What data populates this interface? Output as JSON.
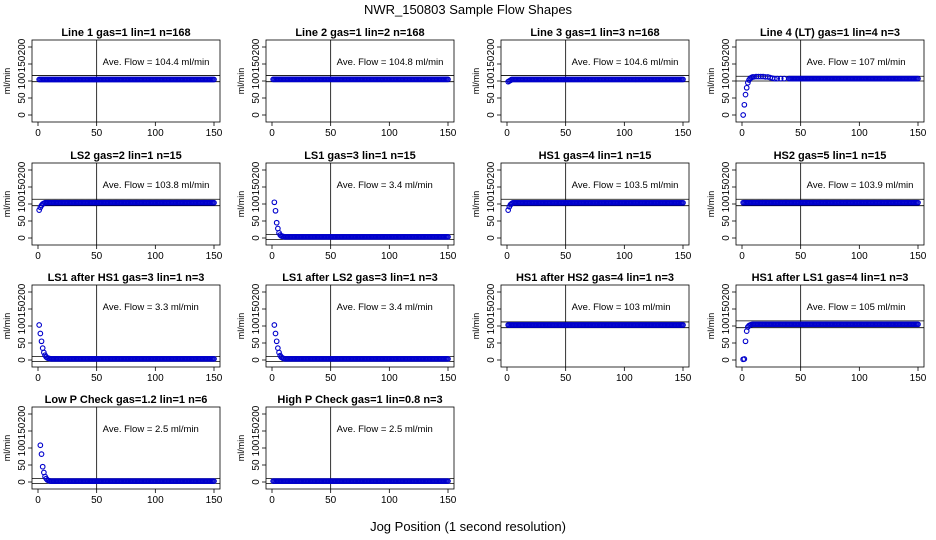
{
  "title": "NWR_150803  Sample Flow Shapes",
  "xlabel": "Jog Position (1 second resolution)",
  "colors": {
    "points": "#0000cc",
    "lines": "#000000",
    "background": "#ffffff"
  },
  "chart_data": [
    {
      "type": "scatter",
      "title": "Line 1 gas=1 lin=1 n=168",
      "annotation": "Ave. Flow = 104.4  ml/min",
      "ylabel": "ml/min",
      "xlim": [
        0,
        150
      ],
      "ylim": [
        0,
        200
      ],
      "xticks": [
        "0",
        "50",
        "100",
        "150"
      ],
      "yticks": [
        "0",
        "50",
        "100",
        "150",
        "200"
      ],
      "reference_lines": {
        "vertical_x": 50,
        "horizontal_y": [
          98,
          116
        ]
      },
      "points": [],
      "steady": {
        "from_x": 1,
        "to_x": 150,
        "y": 104.4
      }
    },
    {
      "type": "scatter",
      "title": "Line 2 gas=1 lin=2 n=168",
      "annotation": "Ave. Flow = 104.8  ml/min",
      "ylabel": "ml/min",
      "xlim": [
        0,
        150
      ],
      "ylim": [
        0,
        200
      ],
      "xticks": [
        "0",
        "50",
        "100",
        "150"
      ],
      "yticks": [
        "0",
        "50",
        "100",
        "150",
        "200"
      ],
      "reference_lines": {
        "vertical_x": 50,
        "horizontal_y": [
          98,
          116
        ]
      },
      "points": [],
      "steady": {
        "from_x": 1,
        "to_x": 150,
        "y": 104.8
      }
    },
    {
      "type": "scatter",
      "title": "Line 3 gas=1 lin=3 n=168",
      "annotation": "Ave. Flow = 104.6  ml/min",
      "ylabel": "ml/min",
      "xlim": [
        0,
        150
      ],
      "ylim": [
        0,
        200
      ],
      "xticks": [
        "0",
        "50",
        "100",
        "150"
      ],
      "yticks": [
        "0",
        "50",
        "100",
        "150",
        "200"
      ],
      "reference_lines": {
        "vertical_x": 50,
        "horizontal_y": [
          98,
          116
        ]
      },
      "points": [
        [
          1,
          98
        ],
        [
          2,
          100
        ],
        [
          3,
          102
        ]
      ],
      "steady": {
        "from_x": 4,
        "to_x": 150,
        "y": 104.6
      }
    },
    {
      "type": "scatter",
      "title": "Line 4 (LT) gas=1 lin=4 n=3",
      "annotation": "Ave. Flow = 107  ml/min",
      "ylabel": "ml/min",
      "xlim": [
        0,
        150
      ],
      "ylim": [
        0,
        200
      ],
      "xticks": [
        "0",
        "50",
        "100",
        "150"
      ],
      "yticks": [
        "0",
        "50",
        "100",
        "150",
        "200"
      ],
      "reference_lines": {
        "vertical_x": 50,
        "horizontal_y": [
          100,
          114
        ]
      },
      "points": [
        [
          1,
          0
        ],
        [
          2,
          30
        ],
        [
          3,
          60
        ],
        [
          4,
          80
        ],
        [
          5,
          95
        ],
        [
          6,
          103
        ],
        [
          7,
          108
        ],
        [
          8,
          110
        ],
        [
          9,
          112
        ],
        [
          10,
          112
        ],
        [
          12,
          113
        ],
        [
          14,
          113
        ],
        [
          16,
          113
        ],
        [
          18,
          113
        ],
        [
          20,
          112
        ],
        [
          22,
          112
        ],
        [
          24,
          110
        ],
        [
          26,
          108
        ],
        [
          28,
          107
        ],
        [
          30,
          107
        ],
        [
          33,
          107
        ],
        [
          36,
          107
        ],
        [
          40,
          107
        ]
      ],
      "steady": {
        "from_x": 41,
        "to_x": 150,
        "y": 107
      }
    },
    {
      "type": "scatter",
      "title": "LS2 gas=2 lin=1 n=15",
      "annotation": "Ave. Flow = 103.8  ml/min",
      "ylabel": "ml/min",
      "xlim": [
        0,
        150
      ],
      "ylim": [
        0,
        200
      ],
      "xticks": [
        "0",
        "50",
        "100",
        "150"
      ],
      "yticks": [
        "0",
        "50",
        "100",
        "150",
        "200"
      ],
      "reference_lines": {
        "vertical_x": 50,
        "horizontal_y": [
          95,
          114
        ]
      },
      "points": [
        [
          1,
          82
        ],
        [
          2,
          90
        ],
        [
          3,
          96
        ],
        [
          4,
          100
        ],
        [
          5,
          102
        ]
      ],
      "steady": {
        "from_x": 6,
        "to_x": 150,
        "y": 103.8
      }
    },
    {
      "type": "scatter",
      "title": "LS1 gas=3 lin=1 n=15",
      "annotation": "Ave. Flow = 3.4  ml/min",
      "ylabel": "ml/min",
      "xlim": [
        0,
        150
      ],
      "ylim": [
        0,
        200
      ],
      "xticks": [
        "0",
        "50",
        "100",
        "150"
      ],
      "yticks": [
        "0",
        "50",
        "100",
        "150",
        "200"
      ],
      "reference_lines": {
        "vertical_x": 50,
        "horizontal_y": [
          -4,
          10
        ]
      },
      "points": [
        [
          2,
          105
        ],
        [
          3,
          80
        ],
        [
          4,
          45
        ],
        [
          5,
          28
        ],
        [
          6,
          15
        ],
        [
          7,
          9
        ],
        [
          8,
          6
        ],
        [
          9,
          5
        ],
        [
          10,
          4
        ]
      ],
      "steady": {
        "from_x": 11,
        "to_x": 150,
        "y": 3.4
      }
    },
    {
      "type": "scatter",
      "title": "HS1 gas=4 lin=1 n=15",
      "annotation": "Ave. Flow = 103.5  ml/min",
      "ylabel": "ml/min",
      "xlim": [
        0,
        150
      ],
      "ylim": [
        0,
        200
      ],
      "xticks": [
        "0",
        "50",
        "100",
        "150"
      ],
      "yticks": [
        "0",
        "50",
        "100",
        "150",
        "200"
      ],
      "reference_lines": {
        "vertical_x": 50,
        "horizontal_y": [
          95,
          114
        ]
      },
      "points": [
        [
          1,
          82
        ],
        [
          2,
          92
        ],
        [
          3,
          98
        ],
        [
          4,
          101
        ]
      ],
      "steady": {
        "from_x": 5,
        "to_x": 150,
        "y": 103.5
      }
    },
    {
      "type": "scatter",
      "title": "HS2 gas=5 lin=1 n=15",
      "annotation": "Ave. Flow = 103.9  ml/min",
      "ylabel": "ml/min",
      "xlim": [
        0,
        150
      ],
      "ylim": [
        0,
        200
      ],
      "xticks": [
        "0",
        "50",
        "100",
        "150"
      ],
      "yticks": [
        "0",
        "50",
        "100",
        "150",
        "200"
      ],
      "reference_lines": {
        "vertical_x": 50,
        "horizontal_y": [
          95,
          114
        ]
      },
      "points": [],
      "steady": {
        "from_x": 1,
        "to_x": 150,
        "y": 103.9
      }
    },
    {
      "type": "scatter",
      "title": "LS1 after HS1 gas=3 lin=1 n=3",
      "annotation": "Ave. Flow =  3.3  ml/min",
      "ylabel": "ml/min",
      "xlim": [
        0,
        150
      ],
      "ylim": [
        0,
        200
      ],
      "xticks": [
        "0",
        "50",
        "100",
        "150"
      ],
      "yticks": [
        "0",
        "50",
        "100",
        "150",
        "200"
      ],
      "reference_lines": {
        "vertical_x": 50,
        "horizontal_y": [
          -4,
          10
        ]
      },
      "points": [
        [
          1,
          103
        ],
        [
          2,
          78
        ],
        [
          3,
          55
        ],
        [
          4,
          35
        ],
        [
          5,
          22
        ],
        [
          6,
          14
        ],
        [
          7,
          9
        ],
        [
          8,
          6
        ],
        [
          9,
          5
        ],
        [
          10,
          4
        ]
      ],
      "steady": {
        "from_x": 11,
        "to_x": 150,
        "y": 3.3
      }
    },
    {
      "type": "scatter",
      "title": "LS1 after LS2 gas=3 lin=1 n=3",
      "annotation": "Ave. Flow =  3.4  ml/min",
      "ylabel": "ml/min",
      "xlim": [
        0,
        150
      ],
      "ylim": [
        0,
        200
      ],
      "xticks": [
        "0",
        "50",
        "100",
        "150"
      ],
      "yticks": [
        "0",
        "50",
        "100",
        "150",
        "200"
      ],
      "reference_lines": {
        "vertical_x": 50,
        "horizontal_y": [
          -4,
          10
        ]
      },
      "points": [
        [
          2,
          103
        ],
        [
          3,
          78
        ],
        [
          4,
          55
        ],
        [
          5,
          35
        ],
        [
          6,
          22
        ],
        [
          7,
          13
        ],
        [
          8,
          8
        ],
        [
          9,
          6
        ],
        [
          10,
          4
        ]
      ],
      "steady": {
        "from_x": 11,
        "to_x": 150,
        "y": 3.4
      }
    },
    {
      "type": "scatter",
      "title": "HS1 after HS2 gas=4 lin=1 n=3",
      "annotation": "Ave. Flow =  103  ml/min",
      "ylabel": "ml/min",
      "xlim": [
        0,
        150
      ],
      "ylim": [
        0,
        200
      ],
      "xticks": [
        "0",
        "50",
        "100",
        "150"
      ],
      "yticks": [
        "0",
        "50",
        "100",
        "150",
        "200"
      ],
      "reference_lines": {
        "vertical_x": 50,
        "horizontal_y": [
          95,
          112
        ]
      },
      "points": [],
      "steady": {
        "from_x": 1,
        "to_x": 150,
        "y": 103
      }
    },
    {
      "type": "scatter",
      "title": "HS1 after LS1 gas=4 lin=1 n=3",
      "annotation": "Ave. Flow =  105  ml/min",
      "ylabel": "ml/min",
      "xlim": [
        0,
        150
      ],
      "ylim": [
        0,
        200
      ],
      "xticks": [
        "0",
        "50",
        "100",
        "150"
      ],
      "yticks": [
        "0",
        "50",
        "100",
        "150",
        "200"
      ],
      "reference_lines": {
        "vertical_x": 50,
        "horizontal_y": [
          95,
          115
        ]
      },
      "points": [
        [
          1,
          2
        ],
        [
          2,
          3
        ],
        [
          3,
          55
        ],
        [
          4,
          85
        ],
        [
          5,
          97
        ],
        [
          6,
          101
        ],
        [
          7,
          103
        ],
        [
          8,
          104
        ]
      ],
      "steady": {
        "from_x": 9,
        "to_x": 150,
        "y": 105
      }
    },
    {
      "type": "scatter",
      "title": "Low P Check gas=1.2 lin=1 n=6",
      "annotation": "Ave. Flow =  2.5  ml/min",
      "ylabel": "ml/min",
      "xlim": [
        0,
        150
      ],
      "ylim": [
        0,
        200
      ],
      "xticks": [
        "0",
        "50",
        "100",
        "150"
      ],
      "yticks": [
        "0",
        "50",
        "100",
        "150",
        "200"
      ],
      "reference_lines": {
        "vertical_x": 50,
        "horizontal_y": [
          -4,
          10
        ]
      },
      "points": [
        [
          2,
          108
        ],
        [
          3,
          82
        ],
        [
          4,
          45
        ],
        [
          5,
          28
        ],
        [
          6,
          16
        ],
        [
          7,
          10
        ],
        [
          8,
          6
        ],
        [
          9,
          4
        ],
        [
          10,
          3
        ]
      ],
      "steady": {
        "from_x": 11,
        "to_x": 150,
        "y": 2.5
      }
    },
    {
      "type": "scatter",
      "title": "High P Check gas=1 lin=0.8 n=3",
      "annotation": "Ave. Flow =  2.5  ml/min",
      "ylabel": "ml/min",
      "xlim": [
        0,
        150
      ],
      "ylim": [
        0,
        200
      ],
      "xticks": [
        "0",
        "50",
        "100",
        "150"
      ],
      "yticks": [
        "0",
        "50",
        "100",
        "150",
        "200"
      ],
      "reference_lines": {
        "vertical_x": 50,
        "horizontal_y": [
          -4,
          10
        ]
      },
      "points": [],
      "steady": {
        "from_x": 1,
        "to_x": 150,
        "y": 2.5
      }
    }
  ]
}
